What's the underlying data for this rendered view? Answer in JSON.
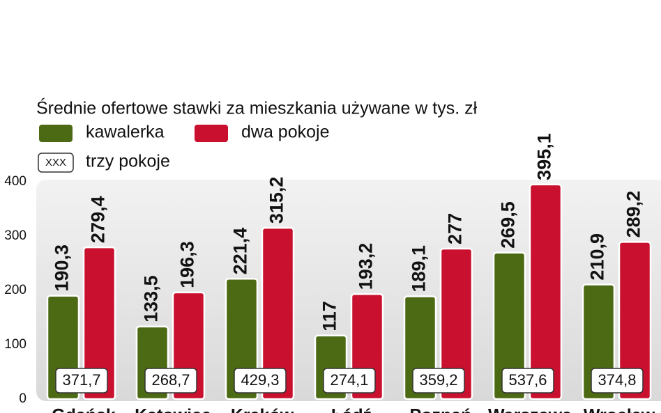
{
  "chart_data": {
    "type": "bar",
    "title": "Średnie ofertowe stawki za mieszkania używane w tys. zł",
    "categories": [
      "Gdańsk",
      "Katowice",
      "Kraków",
      "Łódź",
      "Poznań",
      "Warszawa",
      "Wrocław"
    ],
    "series": [
      {
        "name": "kawalerka",
        "color": "#4b6a13",
        "values": [
          190.3,
          133.5,
          221.4,
          117,
          189.1,
          269.5,
          210.9
        ],
        "value_labels": [
          "190,3",
          "133,5",
          "221,4",
          "117",
          "189,1",
          "269,5",
          "210,9"
        ]
      },
      {
        "name": "dwa pokoje",
        "color": "#c9102f",
        "values": [
          279.4,
          196.3,
          315.2,
          193.2,
          277,
          395.1,
          289.2
        ],
        "value_labels": [
          "279,4",
          "196,3",
          "315,2",
          "193,2",
          "277",
          "395,1",
          "289,2"
        ]
      },
      {
        "name": "trzy pokoje",
        "color": "#ffffff",
        "legend_symbol": "XXX",
        "values": [
          371.7,
          268.7,
          429.3,
          274.1,
          359.2,
          537.6,
          374.8
        ],
        "value_labels": [
          "371,7",
          "268,7",
          "429,3",
          "274,1",
          "359,2",
          "537,6",
          "374,8"
        ]
      }
    ],
    "ylim": [
      0,
      400
    ],
    "yticks": [
      0,
      100,
      200,
      300,
      400
    ]
  }
}
